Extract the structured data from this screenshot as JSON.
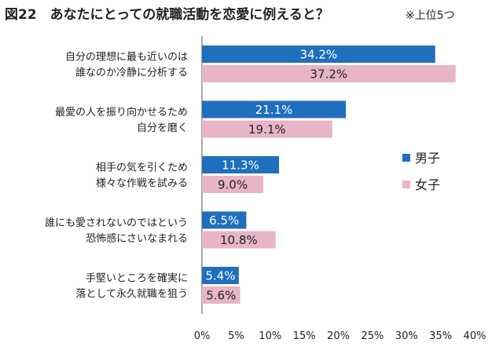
{
  "chart_data": {
    "type": "bar",
    "orientation": "horizontal",
    "title": "図22　あなたにとっての就職活動を恋愛に例えると？",
    "subtitle": "※上位5つ",
    "categories": [
      [
        "自分の理想に最も近いのは",
        "誰なのか冷静に分析する"
      ],
      [
        "最愛の人を振り向かせるため",
        "自分を磨く"
      ],
      [
        "相手の気を引くため",
        "様々な作戦を試みる"
      ],
      [
        "誰にも愛されないのではという",
        "恐怖感にさいなまれる"
      ],
      [
        "手堅いところを確実に",
        "落として永久就職を狙う"
      ]
    ],
    "series": [
      {
        "name": "男子",
        "color": "#1f6fbf",
        "label_color": "#ffffff",
        "values": [
          34.2,
          21.1,
          11.3,
          6.5,
          5.4
        ],
        "labels": [
          "34.2%",
          "21.1%",
          "11.3%",
          "6.5%",
          "5.4%"
        ]
      },
      {
        "name": "女子",
        "color": "#e8b4c8",
        "label_color": "#222222",
        "values": [
          37.2,
          19.1,
          9.0,
          10.8,
          5.6
        ],
        "labels": [
          "37.2%",
          "19.1%",
          "9.0%",
          "10.8%",
          "5.6%"
        ]
      }
    ],
    "xlim": [
      0,
      40
    ],
    "xticks": [
      0,
      5,
      10,
      15,
      20,
      25,
      30,
      35,
      40
    ],
    "xtick_labels": [
      "0%",
      "5%",
      "10%",
      "15%",
      "20%",
      "25%",
      "30%",
      "35%",
      "40%"
    ],
    "grid": false,
    "legend_position": "right"
  }
}
